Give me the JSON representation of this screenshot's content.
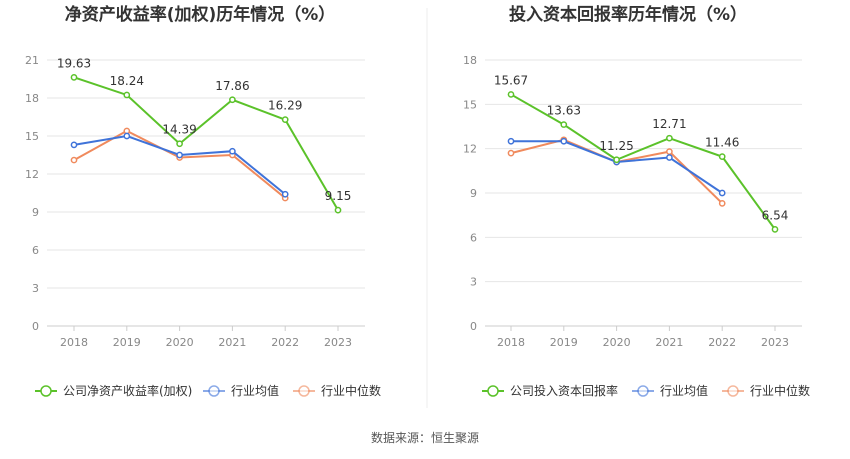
{
  "source": "数据来源：恒生聚源",
  "chart_data": [
    {
      "type": "line",
      "title": "净资产收益率(加权)历年情况（%）",
      "x": [
        "2018",
        "2019",
        "2020",
        "2021",
        "2022",
        "2023"
      ],
      "ylim": [
        0,
        21
      ],
      "yticks": [
        0,
        3,
        6,
        9,
        12,
        15,
        18,
        21
      ],
      "grid": true,
      "legend_position": "bottom",
      "series": [
        {
          "name": "公司净资产收益率(加权)",
          "color": "#5bc22a",
          "values": [
            19.63,
            18.24,
            14.39,
            17.86,
            16.29,
            9.15
          ],
          "labels": true
        },
        {
          "name": "行业均值",
          "color": "#3f73d9",
          "values": [
            14.3,
            15.0,
            13.5,
            13.8,
            10.4,
            null
          ],
          "labels": false
        },
        {
          "name": "行业中位数",
          "color": "#f08a5d",
          "values": [
            13.1,
            15.4,
            13.3,
            13.5,
            10.1,
            null
          ],
          "labels": false
        }
      ]
    },
    {
      "type": "line",
      "title": "投入资本回报率历年情况（%）",
      "x": [
        "2018",
        "2019",
        "2020",
        "2021",
        "2022",
        "2023"
      ],
      "ylim": [
        0,
        18
      ],
      "yticks": [
        0,
        3,
        6,
        9,
        12,
        15,
        18
      ],
      "grid": true,
      "legend_position": "bottom",
      "series": [
        {
          "name": "公司投入资本回报率",
          "color": "#5bc22a",
          "values": [
            15.67,
            13.63,
            11.25,
            12.71,
            11.46,
            6.54
          ],
          "labels": true
        },
        {
          "name": "行业均值",
          "color": "#3f73d9",
          "values": [
            12.5,
            12.5,
            11.1,
            11.4,
            9.0,
            null
          ],
          "labels": false
        },
        {
          "name": "行业中位数",
          "color": "#f08a5d",
          "values": [
            11.7,
            12.6,
            11.1,
            11.8,
            8.3,
            null
          ],
          "labels": false
        }
      ]
    }
  ]
}
